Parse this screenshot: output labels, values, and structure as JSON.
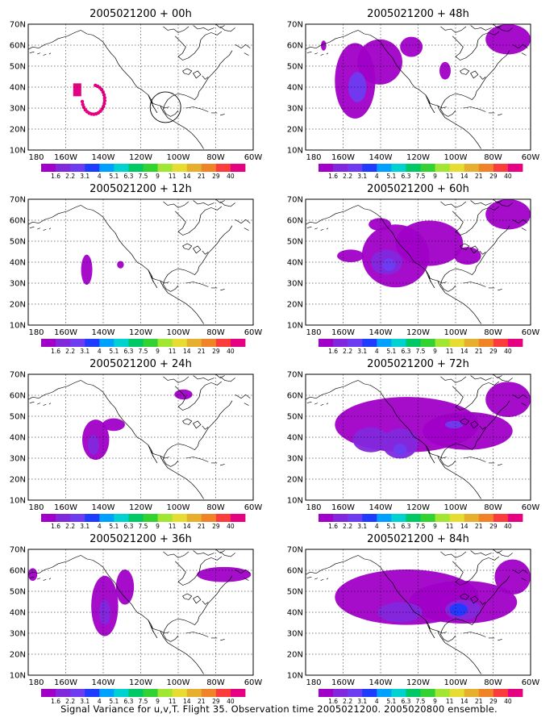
{
  "caption": "Signal Variance for u,v,T. Flight 35. Observation time 2005021200. 2005020800 ensemble.",
  "lon_ticks": [
    "180",
    "160W",
    "140W",
    "120W",
    "100W",
    "80W",
    "60W"
  ],
  "lat_ticks": [
    "70N",
    "60N",
    "50N",
    "40N",
    "30N",
    "20N",
    "10N"
  ],
  "colorbar": {
    "labels": [
      "1.6",
      "2.2",
      "3.1",
      "4",
      "5.1",
      "6.3",
      "7.5",
      "9",
      "11",
      "14",
      "21",
      "29",
      "40"
    ],
    "colors": [
      "#a000c8",
      "#8228dc",
      "#6e3cf0",
      "#1e3cff",
      "#00a0ff",
      "#00d2d2",
      "#00c864",
      "#32d232",
      "#a0e632",
      "#e6dc32",
      "#e6af2d",
      "#f08228",
      "#fa3c3c",
      "#e60082"
    ]
  },
  "panels": [
    {
      "title": "2005021200 + 00h"
    },
    {
      "title": "2005021200 + 48h"
    },
    {
      "title": "2005021200 + 12h"
    },
    {
      "title": "2005021200 + 60h"
    },
    {
      "title": "2005021200 + 24h"
    },
    {
      "title": "2005021200 + 72h"
    },
    {
      "title": "2005021200 + 36h"
    },
    {
      "title": "2005021200 + 84h"
    }
  ],
  "colors": {
    "shade_low": "#a000c8",
    "shade_mid": "#8228dc",
    "shade_high": "#6e3cf0",
    "shade_peak": "#1e3cff",
    "obs_dots": "#e60082"
  }
}
